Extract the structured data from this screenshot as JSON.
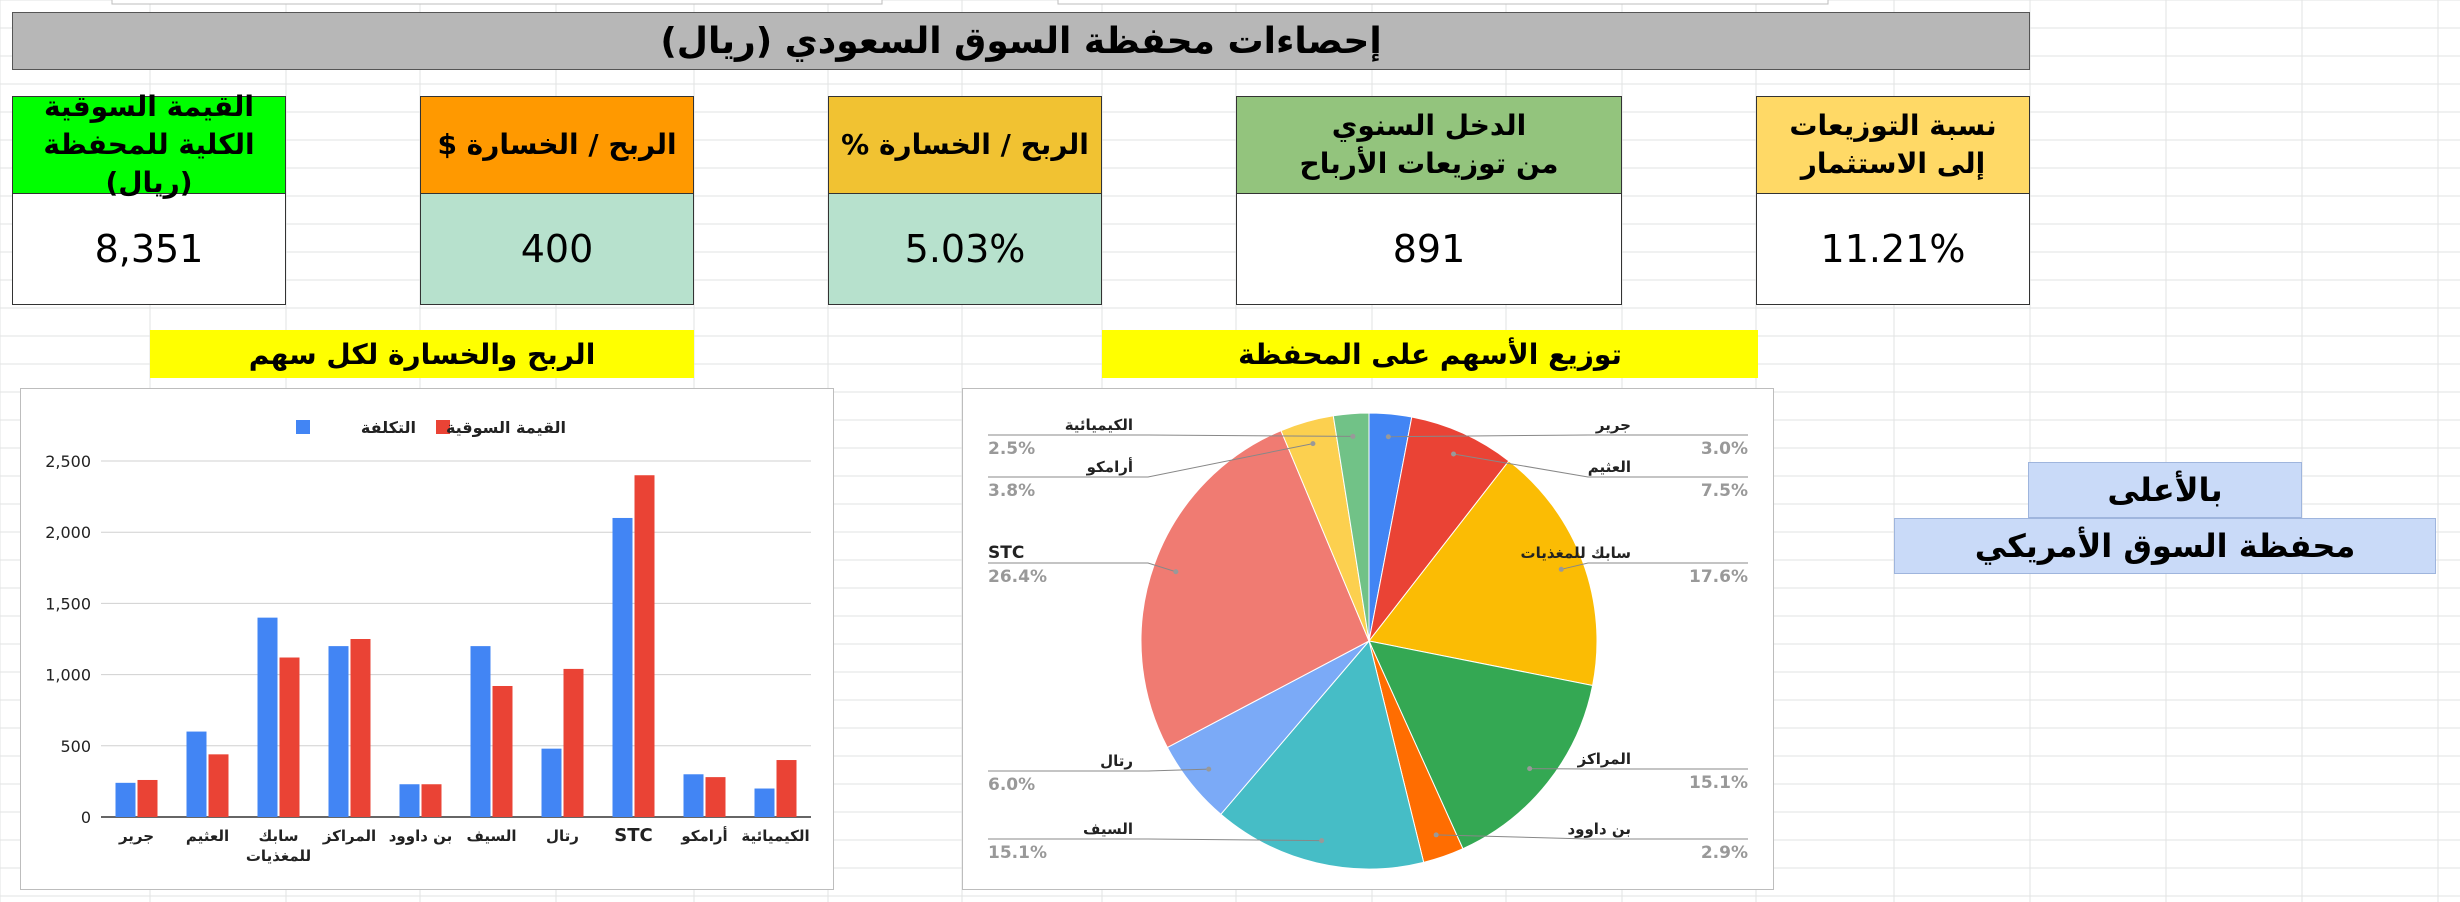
{
  "title": "إحصاءات محفظة السوق السعودي (ريال)",
  "kpis": [
    {
      "label_lines": [
        "القيمة السوقية",
        "الكلية للمحفظة (ريال)"
      ],
      "value": "8,351",
      "header_color": "#00ff00",
      "value_color": "#ffffff"
    },
    {
      "label_lines": [
        "الربح / الخسارة $"
      ],
      "value": "400",
      "header_color": "#ff9900",
      "value_color": "#b7e1cd"
    },
    {
      "label_lines": [
        "الربح / الخسارة %"
      ],
      "value": "5.03%",
      "header_color": "#f1c232",
      "value_color": "#b7e1cd"
    },
    {
      "label_lines": [
        "الدخل السنوي",
        "من توزيعات الأرباح"
      ],
      "value": "891",
      "header_color": "#93c47d",
      "value_color": "#ffffff"
    },
    {
      "label_lines": [
        "نسبة التوزيعات",
        "إلى الاستثمار"
      ],
      "value": "11.21%",
      "header_color": "#ffd966",
      "value_color": "#ffffff"
    }
  ],
  "sections": {
    "bar_title": "الربح والخسارة لكل سهم",
    "pie_title": "توزيع الأسهم على المحفظة"
  },
  "us_link": {
    "line1": "بالأعلى",
    "line2": "محفظة السوق الأمريكي"
  },
  "chart_data": [
    {
      "type": "bar",
      "categories": [
        "جرير",
        "العثيم",
        "سابك للمغذيات",
        "المراكز",
        "بن داوود",
        "السيف",
        "رتال",
        "STC",
        "أرامكو",
        "الكيميائية"
      ],
      "series": [
        {
          "name": "التكلفة",
          "color": "#4285f4",
          "values": [
            240,
            600,
            1400,
            1200,
            230,
            1200,
            480,
            2100,
            300,
            200
          ]
        },
        {
          "name": "القيمة السوقية",
          "color": "#ea4335",
          "values": [
            260,
            440,
            1120,
            1250,
            230,
            920,
            1040,
            2400,
            280,
            400
          ]
        }
      ],
      "ylim": [
        0,
        2500
      ],
      "yticks": [
        "0",
        "500",
        "1,000",
        "1,500",
        "2,000",
        "2,500"
      ],
      "grid": true,
      "legend": "top"
    },
    {
      "type": "pie",
      "slices": [
        {
          "label": "جرير",
          "value": 3.0,
          "pct": "3.0%",
          "color": "#4285f4"
        },
        {
          "label": "العثيم",
          "value": 7.5,
          "pct": "7.5%",
          "color": "#ea4335"
        },
        {
          "label": "سابك للمغذيات",
          "value": 17.6,
          "pct": "17.6%",
          "color": "#fbbc04"
        },
        {
          "label": "المراكز",
          "value": 15.1,
          "pct": "15.1%",
          "color": "#34a853"
        },
        {
          "label": "بن داوود",
          "value": 2.9,
          "pct": "2.9%",
          "color": "#ff6d01"
        },
        {
          "label": "السيف",
          "value": 15.1,
          "pct": "15.1%",
          "color": "#46bdc6"
        },
        {
          "label": "رتال",
          "value": 6.0,
          "pct": "6.0%",
          "color": "#7baaf7"
        },
        {
          "label": "STC",
          "value": 26.4,
          "pct": "26.4%",
          "color": "#f07b72"
        },
        {
          "label": "أرامكو",
          "value": 3.8,
          "pct": "3.8%",
          "color": "#fcd04f"
        },
        {
          "label": "الكيميائية",
          "value": 2.5,
          "pct": "2.5%",
          "color": "#71c287"
        }
      ]
    }
  ]
}
